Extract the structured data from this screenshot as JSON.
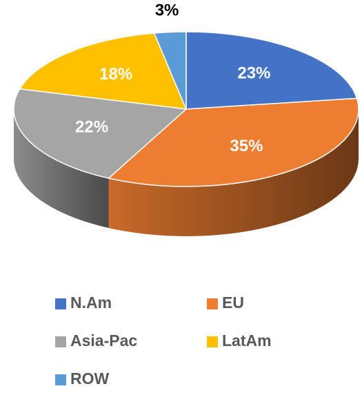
{
  "chart_data": {
    "type": "pie3d",
    "categories": [
      "N.Am",
      "EU",
      "Asia-Pac",
      "LatAm",
      "ROW"
    ],
    "values": [
      23,
      35,
      22,
      18,
      3
    ],
    "value_labels": [
      "23%",
      "35%",
      "22%",
      "18%",
      "3%"
    ],
    "colors": [
      "#4472c4",
      "#ed7d31",
      "#a5a5a5",
      "#ffc000",
      "#5b9bd5"
    ],
    "legend": "bottom"
  }
}
